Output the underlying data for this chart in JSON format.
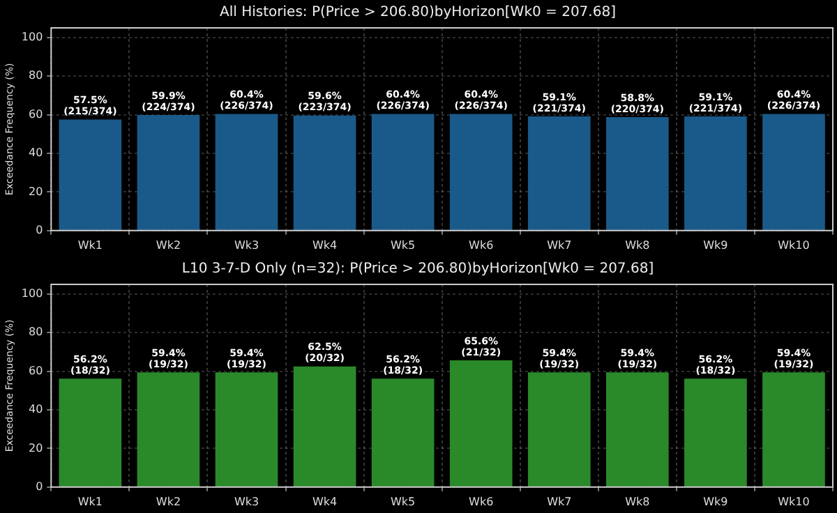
{
  "chart_data": [
    {
      "type": "bar",
      "title": "All Histories: P(Price > 206.80)byHorizon[Wk0 = 207.68]",
      "ylabel": "Exceedance Frequency (%)",
      "categories": [
        "Wk1",
        "Wk2",
        "Wk3",
        "Wk4",
        "Wk5",
        "Wk6",
        "Wk7",
        "Wk8",
        "Wk9",
        "Wk10"
      ],
      "values": [
        57.5,
        59.9,
        60.4,
        59.6,
        60.4,
        60.4,
        59.1,
        58.8,
        59.1,
        60.4
      ],
      "value_labels": [
        "57.5%\n(215/374)",
        "59.9%\n(224/374)",
        "60.4%\n(226/374)",
        "59.6%\n(223/374)",
        "60.4%\n(226/374)",
        "60.4%\n(226/374)",
        "59.1%\n(221/374)",
        "58.8%\n(220/374)",
        "59.1%\n(221/374)",
        "60.4%\n(226/374)"
      ],
      "color": "#1a5a8a",
      "ylim": [
        0,
        105
      ],
      "yticks": [
        0,
        20,
        40,
        60,
        80,
        100
      ],
      "grid": true,
      "legend": false
    },
    {
      "type": "bar",
      "title": "L10 3-7-D Only (n=32): P(Price > 206.80)byHorizon[Wk0 = 207.68]",
      "ylabel": "Exceedance Frequency (%)",
      "categories": [
        "Wk1",
        "Wk2",
        "Wk3",
        "Wk4",
        "Wk5",
        "Wk6",
        "Wk7",
        "Wk8",
        "Wk9",
        "Wk10"
      ],
      "values": [
        56.2,
        59.4,
        59.4,
        62.5,
        56.2,
        65.6,
        59.4,
        59.4,
        56.2,
        59.4
      ],
      "value_labels": [
        "56.2%\n(18/32)",
        "59.4%\n(19/32)",
        "59.4%\n(19/32)",
        "62.5%\n(20/32)",
        "56.2%\n(18/32)",
        "65.6%\n(21/32)",
        "59.4%\n(19/32)",
        "59.4%\n(19/32)",
        "56.2%\n(18/32)",
        "59.4%\n(19/32)"
      ],
      "color": "#2a8a2a",
      "ylim": [
        0,
        105
      ],
      "yticks": [
        0,
        20,
        40,
        60,
        80,
        100
      ],
      "grid": true,
      "legend": false
    }
  ]
}
